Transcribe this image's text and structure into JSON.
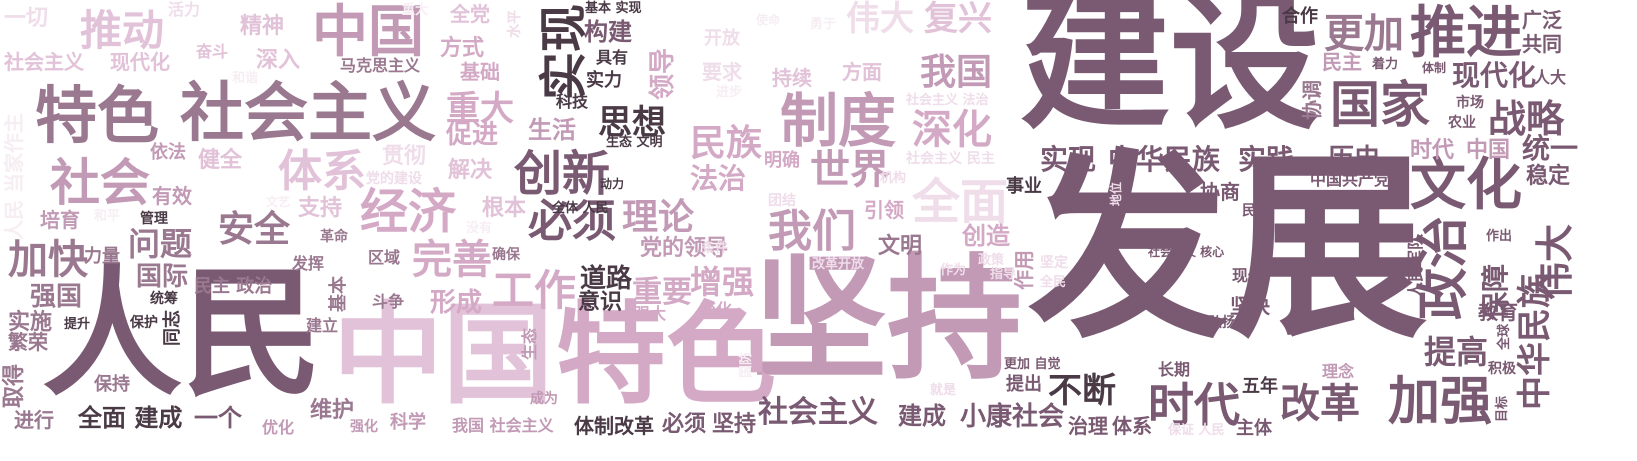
{
  "palette": {
    "c1": "#7a5a72",
    "c2": "#9a7890",
    "c3": "#c29ab6",
    "c4": "#d4a9c6",
    "c5": "#e2c2d8",
    "c6": "#efdde9",
    "c7": "#f6eef3",
    "c8": "#4a3a46"
  },
  "words": [
    {
      "text": "建设",
      "color": "c1"
    },
    {
      "text": "发展",
      "color": "c1"
    },
    {
      "text": "坚持",
      "color": "c3"
    },
    {
      "text": "人民",
      "color": "c1"
    },
    {
      "text": "中国",
      "color": "c5"
    },
    {
      "text": "特色",
      "color": "c4"
    },
    {
      "text": "社会主义",
      "color": "c2"
    },
    {
      "text": "特色",
      "color": "c2"
    },
    {
      "text": "中国",
      "color": "c3"
    },
    {
      "text": "推动",
      "color": "c5"
    },
    {
      "text": "社会",
      "color": "c3"
    },
    {
      "text": "实现",
      "color": "c8"
    },
    {
      "text": "构建",
      "color": "c1"
    },
    {
      "text": "具有",
      "color": "c8"
    },
    {
      "text": "实力",
      "color": "c8"
    },
    {
      "text": "科技",
      "color": "c8"
    },
    {
      "text": "基本 实现",
      "color": "c8"
    },
    {
      "text": "伟大",
      "color": "c6"
    },
    {
      "text": "复兴",
      "color": "c5"
    },
    {
      "text": "制度",
      "color": "c3"
    },
    {
      "text": "深化",
      "color": "c4"
    },
    {
      "text": "我国",
      "color": "c3"
    },
    {
      "text": "方面",
      "color": "c5"
    },
    {
      "text": "持续",
      "color": "c5"
    },
    {
      "text": "推进",
      "color": "c1"
    },
    {
      "text": "更加",
      "color": "c2"
    },
    {
      "text": "合作",
      "color": "c8"
    },
    {
      "text": "广泛",
      "color": "c1"
    },
    {
      "text": "共同",
      "color": "c1"
    },
    {
      "text": "国家",
      "color": "c1"
    },
    {
      "text": "现代化",
      "color": "c1"
    },
    {
      "text": "人大",
      "color": "c1"
    },
    {
      "text": "战略",
      "color": "c1"
    },
    {
      "text": "协调",
      "color": "c2"
    },
    {
      "text": "民主",
      "color": "c3"
    },
    {
      "text": "文化",
      "color": "c1"
    },
    {
      "text": "政治",
      "color": "c1"
    },
    {
      "text": "伟大",
      "color": "c1"
    },
    {
      "text": "中华民族",
      "color": "c1"
    },
    {
      "text": "保障",
      "color": "c1"
    },
    {
      "text": "统一",
      "color": "c1"
    },
    {
      "text": "稳定",
      "color": "c1"
    },
    {
      "text": "时代",
      "color": "c3"
    },
    {
      "text": "中国",
      "color": "c3"
    },
    {
      "text": "创新",
      "color": "c1"
    },
    {
      "text": "思想",
      "color": "c8"
    },
    {
      "text": "生活",
      "color": "c3"
    },
    {
      "text": "必须",
      "color": "c1"
    },
    {
      "text": "理论",
      "color": "c3"
    },
    {
      "text": "民族",
      "color": "c4"
    },
    {
      "text": "法治",
      "color": "c4"
    },
    {
      "text": "世界",
      "color": "c3"
    },
    {
      "text": "经济",
      "color": "c4"
    },
    {
      "text": "体系",
      "color": "c5"
    },
    {
      "text": "重大",
      "color": "c4"
    },
    {
      "text": "促进",
      "color": "c4"
    },
    {
      "text": "实现",
      "color": "c1"
    },
    {
      "text": "中华民族",
      "color": "c1"
    },
    {
      "text": "实践",
      "color": "c1"
    },
    {
      "text": "历史",
      "color": "c1"
    },
    {
      "text": "全面",
      "color": "c6"
    },
    {
      "text": "我们",
      "color": "c3"
    },
    {
      "text": "党的领导",
      "color": "c3"
    },
    {
      "text": "完善",
      "color": "c4"
    },
    {
      "text": "安全",
      "color": "c2"
    },
    {
      "text": "问题",
      "color": "c2"
    },
    {
      "text": "加快",
      "color": "c2"
    },
    {
      "text": "国际",
      "color": "c2"
    },
    {
      "text": "强国",
      "color": "c2"
    },
    {
      "text": "工作",
      "color": "c4"
    },
    {
      "text": "道路",
      "color": "c8"
    },
    {
      "text": "意识",
      "color": "c8"
    },
    {
      "text": "形成",
      "color": "c4"
    },
    {
      "text": "重要",
      "color": "c4"
    },
    {
      "text": "增强",
      "color": "c4"
    },
    {
      "text": "社会主义",
      "color": "c1"
    },
    {
      "text": "建成",
      "color": "c1"
    },
    {
      "text": "小康社会",
      "color": "c1"
    },
    {
      "text": "时代",
      "color": "c1"
    },
    {
      "text": "不断",
      "color": "c8"
    },
    {
      "text": "改革",
      "color": "c1"
    },
    {
      "text": "加强",
      "color": "c1"
    },
    {
      "text": "提高",
      "color": "c1"
    },
    {
      "text": "全面 建成",
      "color": "c8"
    },
    {
      "text": "一个",
      "color": "c1"
    },
    {
      "text": "体制改革",
      "color": "c8"
    },
    {
      "text": "必须",
      "color": "c1"
    },
    {
      "text": "坚持",
      "color": "c1"
    },
    {
      "text": "维护",
      "color": "c2"
    },
    {
      "text": "治理",
      "color": "c1"
    },
    {
      "text": "体系",
      "color": "c1"
    },
    {
      "text": "主体",
      "color": "c1"
    },
    {
      "text": "五年",
      "color": "c8"
    },
    {
      "text": "事业",
      "color": "c8"
    },
    {
      "text": "社会主义",
      "color": "c5"
    },
    {
      "text": "现代化",
      "color": "c5"
    },
    {
      "text": "一切",
      "color": "c6"
    },
    {
      "text": "精神",
      "color": "c5"
    },
    {
      "text": "深入",
      "color": "c5"
    },
    {
      "text": "马克思主义",
      "color": "c2"
    },
    {
      "text": "全党",
      "color": "c5"
    },
    {
      "text": "方式",
      "color": "c4"
    },
    {
      "text": "基础",
      "color": "c4"
    },
    {
      "text": "开放",
      "color": "c6"
    },
    {
      "text": "要求",
      "color": "c6"
    },
    {
      "text": "解决",
      "color": "c5"
    },
    {
      "text": "根本",
      "color": "c5"
    },
    {
      "text": "创造",
      "color": "c4"
    },
    {
      "text": "文明",
      "color": "c2"
    },
    {
      "text": "引领",
      "color": "c4"
    },
    {
      "text": "明确",
      "color": "c4"
    },
    {
      "text": "健全",
      "color": "c5"
    },
    {
      "text": "依法",
      "color": "c3"
    },
    {
      "text": "有效",
      "color": "c3"
    },
    {
      "text": "培育",
      "color": "c3"
    },
    {
      "text": "支持",
      "color": "c5"
    },
    {
      "text": "贯彻",
      "color": "c6"
    },
    {
      "text": "作用",
      "color": "c3"
    },
    {
      "text": "协商",
      "color": "c1"
    },
    {
      "text": "中国共产党",
      "color": "c1"
    },
    {
      "text": "民生",
      "color": "c1"
    },
    {
      "text": "现代",
      "color": "c1"
    },
    {
      "text": "坚决",
      "color": "c1"
    },
    {
      "text": "弘扬",
      "color": "c1"
    },
    {
      "text": "教育",
      "color": "c1"
    },
    {
      "text": "人民军队",
      "color": "c1"
    },
    {
      "text": "作出",
      "color": "c1"
    },
    {
      "text": "积极",
      "color": "c1"
    },
    {
      "text": "全球",
      "color": "c1"
    },
    {
      "text": "目标",
      "color": "c1"
    },
    {
      "text": "理念",
      "color": "c3"
    },
    {
      "text": "长期",
      "color": "c1"
    },
    {
      "text": "提出",
      "color": "c1"
    },
    {
      "text": "更加 自觉",
      "color": "c1"
    },
    {
      "text": "市场",
      "color": "c1"
    },
    {
      "text": "农业",
      "color": "c1"
    },
    {
      "text": "体制",
      "color": "c1"
    },
    {
      "text": "着力",
      "color": "c1"
    },
    {
      "text": "社会主义 核心",
      "color": "c1"
    },
    {
      "text": "民主 政治",
      "color": "c2"
    },
    {
      "text": "力量",
      "color": "c2"
    },
    {
      "text": "实施",
      "color": "c2"
    },
    {
      "text": "取得",
      "color": "c2"
    },
    {
      "text": "繁荣",
      "color": "c2"
    },
    {
      "text": "保持",
      "color": "c2"
    },
    {
      "text": "进行",
      "color": "c2"
    },
    {
      "text": "提升",
      "color": "c8"
    },
    {
      "text": "保护",
      "color": "c8"
    },
    {
      "text": "同志",
      "color": "c8"
    },
    {
      "text": "统筹",
      "color": "c8"
    },
    {
      "text": "管理",
      "color": "c8"
    },
    {
      "text": "斗争",
      "color": "c2"
    },
    {
      "text": "基本",
      "color": "c2"
    },
    {
      "text": "革命",
      "color": "c2"
    },
    {
      "text": "发挥",
      "color": "c2"
    },
    {
      "text": "区域",
      "color": "c2"
    },
    {
      "text": "确保",
      "color": "c2"
    },
    {
      "text": "建立",
      "color": "c2"
    },
    {
      "text": "优化",
      "color": "c3"
    },
    {
      "text": "强化",
      "color": "c3"
    },
    {
      "text": "科学",
      "color": "c3"
    },
    {
      "text": "我国 社会主义",
      "color": "c3"
    },
    {
      "text": "成为",
      "color": "c3"
    },
    {
      "text": "生态",
      "color": "c3"
    },
    {
      "text": "强大",
      "color": "c4"
    },
    {
      "text": "变化",
      "color": "c4"
    },
    {
      "text": "生态 文明",
      "color": "c8"
    },
    {
      "text": "全体 人民",
      "color": "c8"
    },
    {
      "text": "动力",
      "color": "c8"
    },
    {
      "text": "领导",
      "color": "c4"
    },
    {
      "text": "奋斗",
      "color": "c5"
    },
    {
      "text": "活力",
      "color": "c6"
    },
    {
      "text": "水平",
      "color": "c6"
    },
    {
      "text": "团结",
      "color": "c6"
    },
    {
      "text": "条件",
      "color": "c6"
    },
    {
      "text": "改革开放",
      "color": "c6"
    },
    {
      "text": "作为",
      "color": "c6"
    },
    {
      "text": "政策",
      "color": "c6"
    },
    {
      "text": "指导",
      "color": "c6"
    },
    {
      "text": "坚定",
      "color": "c6"
    },
    {
      "text": "全民",
      "color": "c6"
    },
    {
      "text": "地位",
      "color": "c6"
    },
    {
      "text": "就是",
      "color": "c6"
    },
    {
      "text": "保证 人民",
      "color": "c6"
    },
    {
      "text": "党的建设",
      "color": "c6"
    },
    {
      "text": "社会主义 法治",
      "color": "c6"
    },
    {
      "text": "机构",
      "color": "c6"
    },
    {
      "text": "社会主义 民主",
      "color": "c6"
    },
    {
      "text": "人民 当家作主",
      "color": "c7"
    },
    {
      "text": "和平",
      "color": "c7"
    },
    {
      "text": "文艺",
      "color": "c7"
    },
    {
      "text": "没有",
      "color": "c7"
    },
    {
      "text": "重大",
      "color": "c7"
    },
    {
      "text": "和谐",
      "color": "c7"
    },
    {
      "text": "进步",
      "color": "c7"
    },
    {
      "text": "勇于",
      "color": "c7"
    },
    {
      "text": "使命",
      "color": "c7"
    },
    {
      "text": "国防",
      "color": "c7"
    }
  ]
}
